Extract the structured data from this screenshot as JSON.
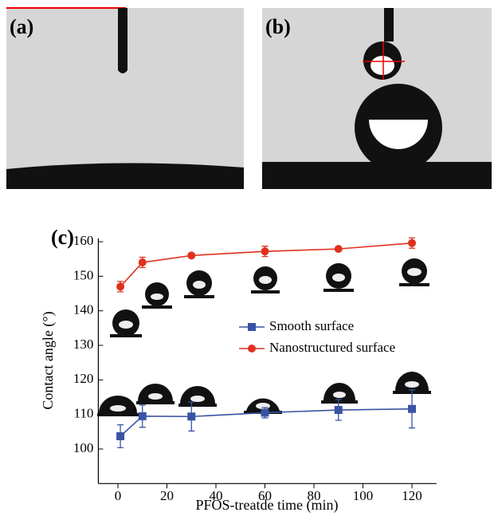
{
  "panels": {
    "a": "(a)",
    "b": "(b)"
  },
  "chart_data": {
    "type": "line",
    "label": "(c)",
    "xlabel": "PFOS-treatde time (min)",
    "ylabel": "Contact angle (°)",
    "xlim": [
      -8,
      130
    ],
    "ylim": [
      90,
      161
    ],
    "xticks": [
      0,
      20,
      40,
      60,
      80,
      100,
      120
    ],
    "yticks": [
      100,
      110,
      120,
      130,
      140,
      150,
      160
    ],
    "series": [
      {
        "name": "Smooth surface",
        "color": "#3953a4",
        "marker": "square",
        "x": [
          1,
          10,
          30,
          60,
          90,
          120
        ],
        "values": [
          103.7,
          109.5,
          109.4,
          110.5,
          111.3,
          111.6
        ],
        "errors": [
          3.3,
          3.2,
          4.2,
          1.5,
          3,
          5.5
        ]
      },
      {
        "name": "Nanostructured surface",
        "color": "#e0301e",
        "marker": "circle",
        "x": [
          1,
          10,
          30,
          60,
          90,
          120
        ],
        "values": [
          147,
          154,
          156,
          157.2,
          157.9,
          159.6
        ],
        "errors": [
          1.5,
          1.5,
          0.5,
          1.5,
          0.5,
          1.5
        ]
      }
    ]
  }
}
